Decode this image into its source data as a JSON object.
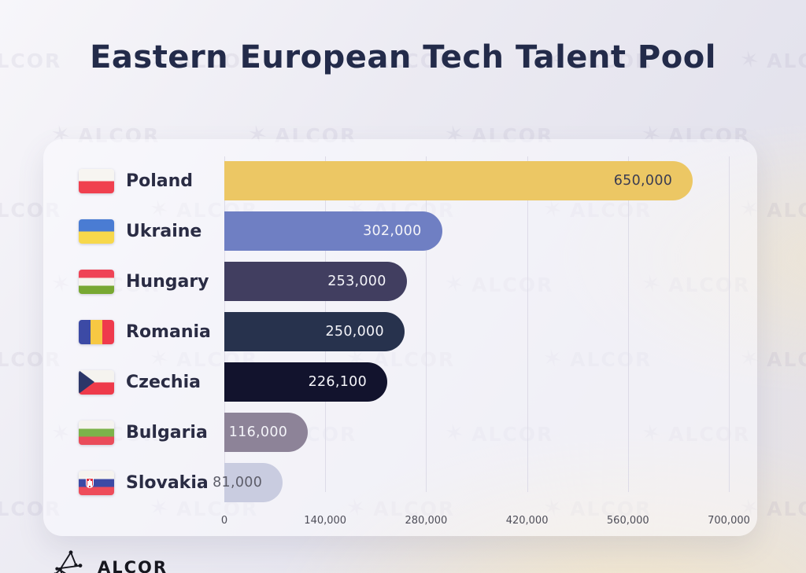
{
  "title": "Eastern European Tech Talent Pool",
  "watermark": {
    "text": "ALCOR",
    "star_icon": "✶"
  },
  "logo": {
    "text": "ALCOR"
  },
  "chart_data": {
    "type": "bar",
    "orientation": "horizontal",
    "title": "Eastern European Tech Talent Pool",
    "xlabel": "",
    "ylabel": "",
    "xlim": [
      0,
      700000
    ],
    "grid": true,
    "legend": "none",
    "x_ticks": [
      "0",
      "140,000",
      "280,000",
      "420,000",
      "560,000",
      "700,000"
    ],
    "x_tick_values": [
      0,
      140000,
      280000,
      420000,
      560000,
      700000
    ],
    "rows": [
      {
        "country": "Poland",
        "value": 650000,
        "value_label": "650,000",
        "bar_color": "#ecc764",
        "value_label_color": "#3a3c52",
        "flag": "poland"
      },
      {
        "country": "Ukraine",
        "value": 302000,
        "value_label": "302,000",
        "bar_color": "#6f7fc3",
        "value_label_color": "#f4f4f9",
        "flag": "ukraine"
      },
      {
        "country": "Hungary",
        "value": 253000,
        "value_label": "253,000",
        "bar_color": "#413e60",
        "value_label_color": "#f4f4f9",
        "flag": "hungary"
      },
      {
        "country": "Romania",
        "value": 250000,
        "value_label": "250,000",
        "bar_color": "#27324d",
        "value_label_color": "#f4f4f9",
        "flag": "romania"
      },
      {
        "country": "Czechia",
        "value": 226100,
        "value_label": "226,100",
        "bar_color": "#12132d",
        "value_label_color": "#f4f4f9",
        "flag": "czechia"
      },
      {
        "country": "Bulgaria",
        "value": 116000,
        "value_label": "116,000",
        "bar_color": "#8d8398",
        "value_label_color": "#f4f4f9",
        "flag": "bulgaria"
      },
      {
        "country": "Slovakia",
        "value": 81000,
        "value_label": "81,000",
        "bar_color": "#c9cce0",
        "value_label_color": "#5c5c68",
        "flag": "slovakia"
      }
    ]
  }
}
